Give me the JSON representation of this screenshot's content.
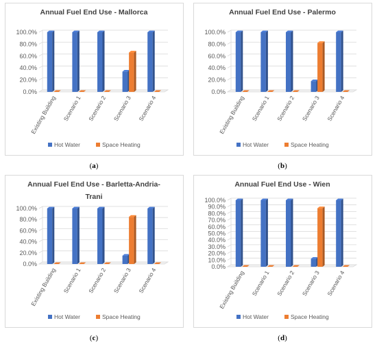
{
  "legend_labels": [
    "Hot Water",
    "Space Heating"
  ],
  "colors": {
    "hot_water": "#4472C4",
    "space_heating": "#ED7D31",
    "frame": "#D9D9D9",
    "grid": "#D9D9D9",
    "text": "#595959",
    "title": "#404040"
  },
  "chart_data": [
    {
      "type": "bar",
      "title": "Annual Fuel End Use - Mallorca",
      "caption": "(a)",
      "categories": [
        "Existing Building",
        "Scenario 1",
        "Scenario 2",
        "Scenario 3",
        "Scenario 4"
      ],
      "series": [
        {
          "name": "Hot Water",
          "values": [
            100,
            100,
            100,
            34,
            100
          ]
        },
        {
          "name": "Space Heating",
          "values": [
            0,
            0,
            0,
            66,
            0
          ]
        }
      ],
      "yticks": [
        "0.0%",
        "20.0%",
        "40.0%",
        "60.0%",
        "80.0%",
        "100.0%"
      ],
      "ylim": [
        0,
        100
      ],
      "legend": "bottom",
      "grid": true
    },
    {
      "type": "bar",
      "title": "Annual Fuel End Use - Palermo",
      "caption": "(b)",
      "categories": [
        "Existing Building",
        "Scenario 1",
        "Scenario 2",
        "Scenario 3",
        "Scenario 4"
      ],
      "series": [
        {
          "name": "Hot Water",
          "values": [
            100,
            100,
            100,
            18,
            100
          ]
        },
        {
          "name": "Space Heating",
          "values": [
            0,
            0,
            0,
            82,
            0
          ]
        }
      ],
      "yticks": [
        "0.0%",
        "20.0%",
        "40.0%",
        "60.0%",
        "80.0%",
        "100.0%"
      ],
      "ylim": [
        0,
        100
      ],
      "legend": "bottom",
      "grid": true
    },
    {
      "type": "bar",
      "title": "Annual Fuel End Use - Barletta-Andria-Trani",
      "caption": "(c)",
      "categories": [
        "Existing Building",
        "Scenario 1",
        "Scenario 2",
        "Scenario 3",
        "Scenario 4"
      ],
      "series": [
        {
          "name": "Hot Water",
          "values": [
            100,
            100,
            100,
            15,
            100
          ]
        },
        {
          "name": "Space Heating",
          "values": [
            0,
            0,
            0,
            85,
            0
          ]
        }
      ],
      "yticks": [
        "0.0%",
        "20.0%",
        "40.0%",
        "60.0%",
        "80.0%",
        "100.0%"
      ],
      "ylim": [
        0,
        100
      ],
      "legend": "bottom",
      "grid": true
    },
    {
      "type": "bar",
      "title": "Annual Fuel End Use - Wien",
      "caption": "(d)",
      "categories": [
        "Existing Building",
        "Scenario 1",
        "Scenario 2",
        "Scenario 3",
        "Scenario 4"
      ],
      "series": [
        {
          "name": "Hot Water",
          "values": [
            100,
            100,
            100,
            12,
            100
          ]
        },
        {
          "name": "Space Heating",
          "values": [
            0,
            0,
            0,
            88,
            0
          ]
        }
      ],
      "yticks": [
        "0.0%",
        "10.0%",
        "20.0%",
        "30.0%",
        "40.0%",
        "50.0%",
        "60.0%",
        "70.0%",
        "80.0%",
        "90.0%",
        "100.0%"
      ],
      "ylim": [
        0,
        100
      ],
      "legend": "bottom",
      "grid": true
    }
  ]
}
